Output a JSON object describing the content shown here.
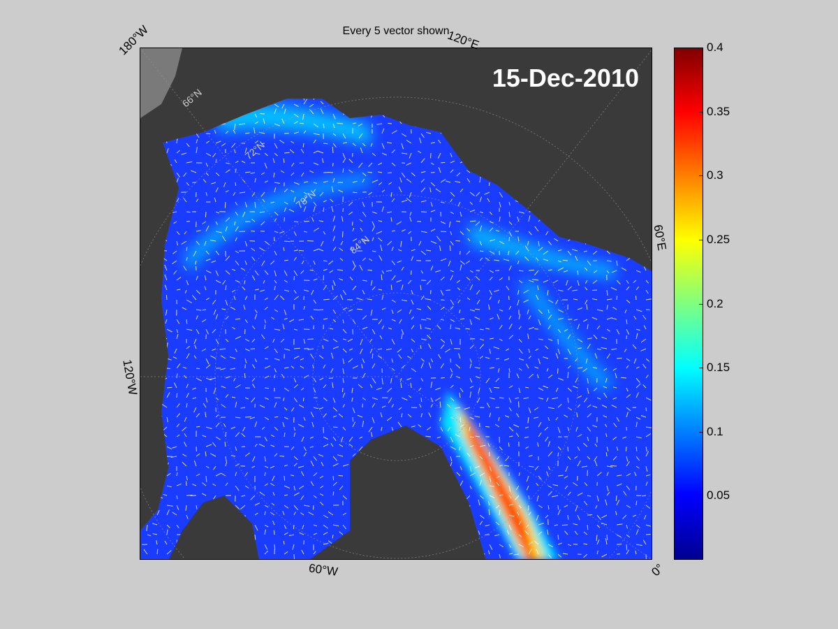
{
  "title": "Every 5 vector shown",
  "date_label": "15-Dec-2010",
  "longitude_labels": {
    "w180": "180°W",
    "e120": "120°E",
    "e60": "60°E",
    "w120": "120°W",
    "w60": "60°W",
    "zero": "0°"
  },
  "latitude_labels": {
    "n66": "66°N",
    "n72": "72°N",
    "n78": "78°N",
    "n84": "84°N"
  },
  "colorbar": {
    "min": 0,
    "max": 0.4,
    "ticks": [
      "0.4",
      "0.35",
      "0.3",
      "0.25",
      "0.2",
      "0.15",
      "0.1",
      "0.05"
    ],
    "colors": [
      "#00008f",
      "#0000ff",
      "#00ffff",
      "#ffff00",
      "#ff0000",
      "#800000"
    ]
  },
  "colors": {
    "land": "#3a3a3a",
    "ice_low": "#1a3cff",
    "ice_mid": "#00d5ff",
    "ice_high": "#ff3a00"
  }
}
